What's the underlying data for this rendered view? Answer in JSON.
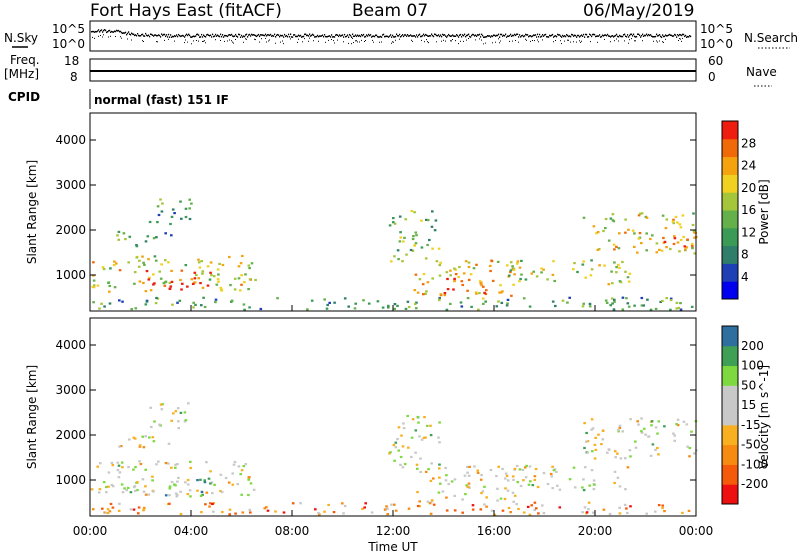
{
  "header": {
    "title": "Fort Hays East (fitACF)",
    "beam": "Beam 07",
    "date": "06/May/2019"
  },
  "noise_panel": {
    "left_label": "N.Sky",
    "right_label": "N.Search",
    "ytick_top": "10^5",
    "ytick_bottom": "10^0"
  },
  "freq_panel": {
    "left_label_line1": "Freq.",
    "left_label_line2": "[MHz]",
    "left_ticks": [
      "18",
      "8"
    ],
    "right_label": "Nave",
    "right_ticks": [
      "60",
      "0"
    ]
  },
  "cpid": {
    "label": "CPID",
    "value": "normal (fast) 151 IF"
  },
  "colors": {
    "power": [
      "#0000ee",
      "#1f3fb5",
      "#2f7d6a",
      "#3b9a55",
      "#64b04a",
      "#a5c63a",
      "#f0d020",
      "#f4a20e",
      "#f06a0a",
      "#ee1d10"
    ],
    "velocity": [
      "#ee1010",
      "#f45a0a",
      "#f78a10",
      "#f8b020",
      "#c8c8c8",
      "#c8c8c8",
      "#7ed840",
      "#3f9f55",
      "#2f6fa0",
      "#1a2ad0"
    ]
  },
  "chart_data": [
    {
      "type": "heatmap",
      "name": "power",
      "xlabel": "",
      "ylabel": "Slant Range [km]",
      "xlim": [
        0,
        24
      ],
      "ylim": [
        200,
        4600
      ],
      "yticks": [
        "1000",
        "2000",
        "3000",
        "4000"
      ],
      "colorbar_label": "Power [dB]",
      "colorbar_ticks": [
        "4",
        "8",
        "12",
        "16",
        "20",
        "24",
        "28"
      ],
      "colorbar_range": [
        0,
        32
      ],
      "regions": [
        {
          "t0": 0.0,
          "t1": 6.6,
          "r0": 650,
          "r1": 1450,
          "level": 0.6
        },
        {
          "t0": 2.2,
          "t1": 4.8,
          "r0": 700,
          "r1": 1150,
          "level": 0.95
        },
        {
          "t0": 1.0,
          "t1": 3.2,
          "r0": 1650,
          "r1": 2000,
          "level": 0.4
        },
        {
          "t0": 2.3,
          "t1": 4.0,
          "r0": 2150,
          "r1": 2750,
          "level": 0.35
        },
        {
          "t0": 11.8,
          "t1": 13.8,
          "r0": 1300,
          "r1": 2450,
          "level": 0.45
        },
        {
          "t0": 12.8,
          "t1": 16.8,
          "r0": 500,
          "r1": 1350,
          "level": 0.7
        },
        {
          "t0": 14.0,
          "t1": 15.6,
          "r0": 600,
          "r1": 950,
          "level": 0.95
        },
        {
          "t0": 16.4,
          "t1": 21.5,
          "r0": 800,
          "r1": 1350,
          "level": 0.55
        },
        {
          "t0": 19.5,
          "t1": 24.0,
          "r0": 1500,
          "r1": 2400,
          "level": 0.6
        },
        {
          "t0": 22.0,
          "t1": 24.0,
          "r0": 1650,
          "r1": 1900,
          "level": 0.9
        },
        {
          "t0": 0.0,
          "t1": 24.0,
          "r0": 250,
          "r1": 520,
          "level": 0.35
        }
      ]
    },
    {
      "type": "heatmap",
      "name": "velocity",
      "xlabel": "Time UT",
      "ylabel": "Slant Range [km]",
      "xlim": [
        0,
        24
      ],
      "ylim": [
        200,
        4600
      ],
      "xticks": [
        "00:00",
        "04:00",
        "08:00",
        "12:00",
        "16:00",
        "20:00",
        "00:00"
      ],
      "yticks": [
        "1000",
        "2000",
        "3000",
        "4000"
      ],
      "colorbar_label": "Velocity [m s^-1]",
      "colorbar_ticks": [
        "200",
        "100",
        "50",
        "15",
        "-15",
        "-50",
        "-100",
        "-200"
      ],
      "regions": [
        {
          "t0": 0.0,
          "t1": 6.6,
          "r0": 650,
          "r1": 1450,
          "level": 0.5
        },
        {
          "t0": 2.5,
          "t1": 4.8,
          "r0": 650,
          "r1": 1100,
          "level": 0.65
        },
        {
          "t0": 1.0,
          "t1": 3.2,
          "r0": 1650,
          "r1": 2000,
          "level": 0.5
        },
        {
          "t0": 2.3,
          "t1": 4.0,
          "r0": 2150,
          "r1": 2750,
          "level": 0.5
        },
        {
          "t0": 11.8,
          "t1": 13.8,
          "r0": 1300,
          "r1": 2450,
          "level": 0.5
        },
        {
          "t0": 12.8,
          "t1": 16.8,
          "r0": 500,
          "r1": 1350,
          "level": 0.45
        },
        {
          "t0": 16.4,
          "t1": 21.5,
          "r0": 800,
          "r1": 1350,
          "level": 0.5
        },
        {
          "t0": 19.5,
          "t1": 24.0,
          "r0": 1500,
          "r1": 2400,
          "level": 0.5
        },
        {
          "t0": 0.0,
          "t1": 24.0,
          "r0": 250,
          "r1": 520,
          "level": 0.3
        }
      ]
    }
  ]
}
